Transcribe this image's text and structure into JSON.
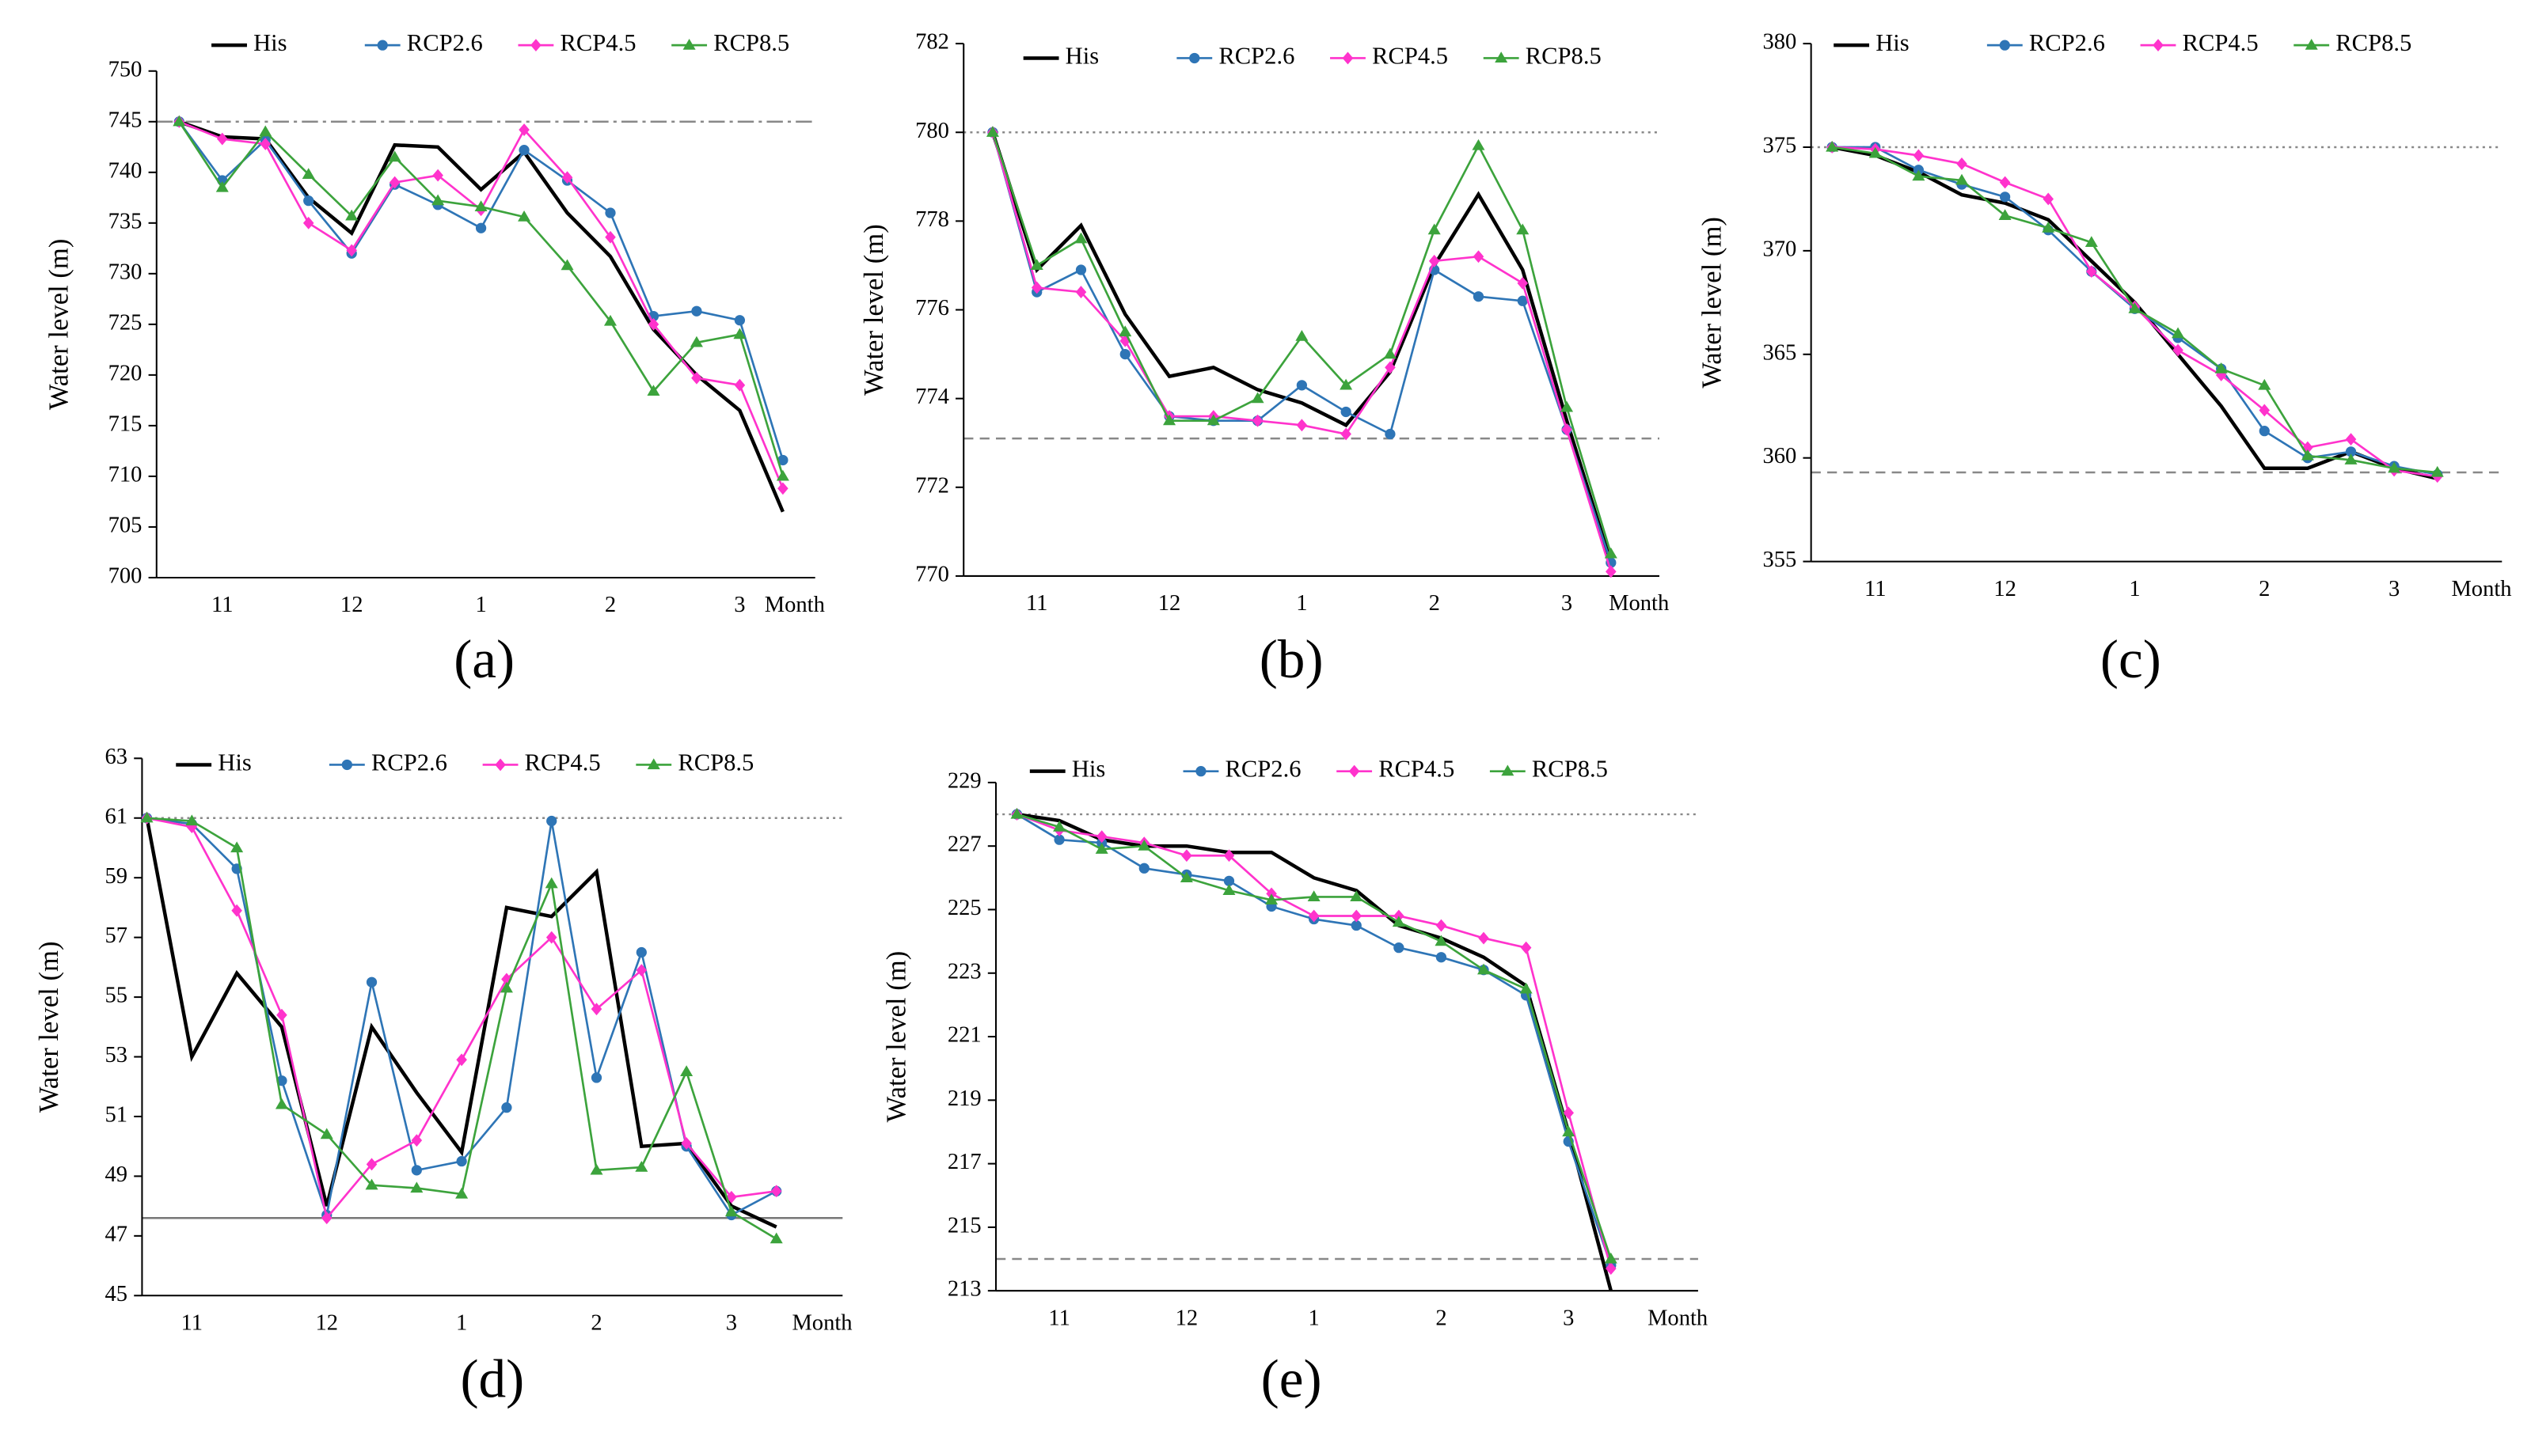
{
  "chart_data": [
    {
      "type": "line",
      "caption": "(a)",
      "ylabel": "Water level (m)",
      "xlabel": "Month",
      "categories": [
        null,
        "11",
        null,
        null,
        "12",
        null,
        null,
        "1",
        null,
        null,
        "2",
        null,
        null,
        "3",
        null
      ],
      "ylim": [
        700,
        750
      ],
      "yticks": [
        700,
        705,
        710,
        715,
        720,
        725,
        730,
        735,
        740,
        745,
        750
      ],
      "reference_lines": [
        {
          "value": 745,
          "style": "dashdot"
        }
      ],
      "series": [
        {
          "name": "His",
          "color": "#000000",
          "marker": "none",
          "values": [
            745,
            743.5,
            743.3,
            737.5,
            734,
            742.7,
            742.5,
            738.3,
            742,
            736,
            731.7,
            724.5,
            720,
            716.5,
            706.5
          ]
        },
        {
          "name": "RCP2.6",
          "color": "#2E75B6",
          "marker": "circle",
          "values": [
            745,
            739.2,
            743.2,
            737.2,
            732,
            738.8,
            736.8,
            734.5,
            742.2,
            739.2,
            736,
            725.8,
            726.3,
            725.4,
            711.6
          ]
        },
        {
          "name": "RCP4.5",
          "color": "#FF33CC",
          "marker": "diamond",
          "values": [
            745,
            743.3,
            742.8,
            735,
            732.3,
            739,
            739.7,
            736.3,
            744.2,
            739.5,
            733.6,
            725,
            719.7,
            719,
            708.8
          ]
        },
        {
          "name": "RCP8.5",
          "color": "#3CA33C",
          "marker": "triangle",
          "values": [
            745,
            738.5,
            744,
            739.8,
            735.7,
            741.5,
            737.2,
            736.6,
            735.6,
            730.8,
            725.3,
            718.4,
            723.2,
            724,
            710
          ]
        }
      ]
    },
    {
      "type": "line",
      "caption": "(b)",
      "ylabel": "Water level (m)",
      "xlabel": "Month",
      "categories": [
        null,
        "11",
        null,
        null,
        "12",
        null,
        null,
        "1",
        null,
        null,
        "2",
        null,
        null,
        "3",
        null
      ],
      "ylim": [
        770,
        782
      ],
      "yticks": [
        770,
        772,
        774,
        776,
        778,
        780,
        782
      ],
      "reference_lines": [
        {
          "value": 780,
          "style": "dotted"
        },
        {
          "value": 773.1,
          "style": "dashed"
        }
      ],
      "series": [
        {
          "name": "His",
          "color": "#000000",
          "marker": "none",
          "values": [
            780,
            776.9,
            777.9,
            775.9,
            774.5,
            774.7,
            774.2,
            773.9,
            773.4,
            774.6,
            777,
            778.6,
            776.9,
            773.5,
            770.3
          ]
        },
        {
          "name": "RCP2.6",
          "color": "#2E75B6",
          "marker": "circle",
          "values": [
            780,
            776.4,
            776.9,
            775,
            773.6,
            773.5,
            773.5,
            774.3,
            773.7,
            773.2,
            776.9,
            776.3,
            776.2,
            773.3,
            770.3
          ]
        },
        {
          "name": "RCP4.5",
          "color": "#FF33CC",
          "marker": "diamond",
          "values": [
            780,
            776.5,
            776.4,
            775.3,
            773.6,
            773.6,
            773.5,
            773.4,
            773.2,
            774.7,
            777.1,
            777.2,
            776.6,
            773.3,
            770.1
          ]
        },
        {
          "name": "RCP8.5",
          "color": "#3CA33C",
          "marker": "triangle",
          "values": [
            780,
            777,
            777.6,
            775.5,
            773.5,
            773.5,
            774,
            775.4,
            774.3,
            775,
            777.8,
            779.7,
            777.8,
            773.8,
            770.5
          ]
        }
      ]
    },
    {
      "type": "line",
      "caption": "(c)",
      "ylabel": "Water level (m)",
      "xlabel": "Month",
      "categories": [
        null,
        "11",
        null,
        null,
        "12",
        null,
        null,
        "1",
        null,
        null,
        "2",
        null,
        null,
        "3",
        null
      ],
      "ylim": [
        355,
        380
      ],
      "yticks": [
        355,
        360,
        365,
        370,
        375,
        380
      ],
      "reference_lines": [
        {
          "value": 375,
          "style": "dotted"
        },
        {
          "value": 359.3,
          "style": "dashed"
        }
      ],
      "series": [
        {
          "name": "His",
          "color": "#000000",
          "marker": "none",
          "values": [
            375,
            374.6,
            373.8,
            372.7,
            372.3,
            371.5,
            369.5,
            367.5,
            365,
            362.5,
            359.5,
            359.5,
            360.3,
            359.5,
            359
          ]
        },
        {
          "name": "RCP2.6",
          "color": "#2E75B6",
          "marker": "circle",
          "values": [
            375,
            375,
            373.9,
            373.2,
            372.6,
            371,
            369,
            367.2,
            365.8,
            364.3,
            361.3,
            360,
            360.3,
            359.6,
            359.2
          ]
        },
        {
          "name": "RCP4.5",
          "color": "#FF33CC",
          "marker": "diamond",
          "values": [
            375,
            374.9,
            374.6,
            374.2,
            373.3,
            372.5,
            369,
            367.3,
            365.2,
            364,
            362.3,
            360.5,
            360.9,
            359.4,
            359.1
          ]
        },
        {
          "name": "RCP8.5",
          "color": "#3CA33C",
          "marker": "triangle",
          "values": [
            375,
            374.7,
            373.6,
            373.4,
            371.7,
            371.1,
            370.4,
            367.2,
            366,
            364.3,
            363.5,
            360.1,
            359.9,
            359.5,
            359.3
          ]
        }
      ]
    },
    {
      "type": "line",
      "caption": "(d)",
      "ylabel": "Water level (m)",
      "xlabel": "Month",
      "categories": [
        null,
        "11",
        null,
        null,
        "12",
        null,
        null,
        "1",
        null,
        null,
        "2",
        null,
        null,
        "3",
        null
      ],
      "ylim": [
        45,
        63
      ],
      "yticks": [
        45,
        47,
        49,
        51,
        53,
        55,
        57,
        59,
        61,
        63
      ],
      "reference_lines": [
        {
          "value": 61,
          "style": "dotted"
        },
        {
          "value": 47.6,
          "style": "solid"
        }
      ],
      "series": [
        {
          "name": "His",
          "color": "#000000",
          "marker": "none",
          "values": [
            61,
            53,
            55.8,
            54,
            48,
            54,
            51.8,
            49.8,
            58,
            57.7,
            59.2,
            50,
            50.1,
            48,
            47.3
          ]
        },
        {
          "name": "RCP2.6",
          "color": "#2E75B6",
          "marker": "circle",
          "values": [
            61,
            60.8,
            59.3,
            52.2,
            47.7,
            55.5,
            49.2,
            49.5,
            51.3,
            60.9,
            52.3,
            56.5,
            50,
            47.7,
            48.5
          ]
        },
        {
          "name": "RCP4.5",
          "color": "#FF33CC",
          "marker": "diamond",
          "values": [
            61,
            60.7,
            57.9,
            54.4,
            47.6,
            49.4,
            50.2,
            52.9,
            55.6,
            57,
            54.6,
            55.9,
            50.1,
            48.3,
            48.5
          ]
        },
        {
          "name": "RCP8.5",
          "color": "#3CA33C",
          "marker": "triangle",
          "values": [
            61,
            60.9,
            60,
            51.4,
            50.4,
            48.7,
            48.6,
            48.4,
            55.3,
            58.8,
            49.2,
            49.3,
            52.5,
            47.8,
            46.9
          ]
        }
      ]
    },
    {
      "type": "line",
      "caption": "(e)",
      "ylabel": "Water level (m)",
      "xlabel": "Month",
      "categories": [
        null,
        "11",
        null,
        null,
        "12",
        null,
        null,
        "1",
        null,
        null,
        "2",
        null,
        null,
        "3",
        null
      ],
      "ylim": [
        213,
        229
      ],
      "yticks": [
        213,
        215,
        217,
        219,
        221,
        223,
        225,
        227,
        229
      ],
      "reference_lines": [
        {
          "value": 228,
          "style": "dotted"
        },
        {
          "value": 214,
          "style": "dashed"
        }
      ],
      "series": [
        {
          "name": "His",
          "color": "#000000",
          "marker": "none",
          "values": [
            228,
            227.8,
            227.2,
            227,
            227,
            226.8,
            226.8,
            226,
            225.6,
            224.5,
            224.1,
            223.5,
            222.6,
            218,
            213
          ]
        },
        {
          "name": "RCP2.6",
          "color": "#2E75B6",
          "marker": "circle",
          "values": [
            228,
            227.2,
            227.1,
            226.3,
            226.1,
            225.9,
            225.1,
            224.7,
            224.5,
            223.8,
            223.5,
            223.1,
            222.3,
            217.7,
            213.8
          ]
        },
        {
          "name": "RCP4.5",
          "color": "#FF33CC",
          "marker": "diamond",
          "values": [
            228,
            227.5,
            227.3,
            227.1,
            226.7,
            226.7,
            225.5,
            224.8,
            224.8,
            224.8,
            224.5,
            224.1,
            223.8,
            218.6,
            213.7
          ]
        },
        {
          "name": "RCP8.5",
          "color": "#3CA33C",
          "marker": "triangle",
          "values": [
            228,
            227.6,
            226.9,
            227,
            226,
            225.6,
            225.3,
            225.4,
            225.4,
            224.6,
            224,
            223.1,
            222.5,
            218,
            214
          ]
        }
      ]
    }
  ]
}
